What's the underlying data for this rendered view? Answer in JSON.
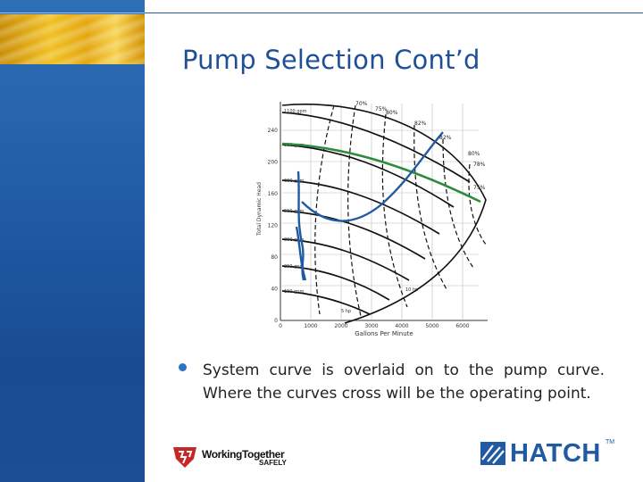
{
  "slide": {
    "title": "Pump Selection Cont’d"
  },
  "bullets": [
    {
      "text": "System curve is overlaid on to the pump curve. Where the curves cross will be the operating point."
    }
  ],
  "logos": {
    "working_together_line1": "WorkingTogether",
    "working_together_line2": "SAFELY",
    "hatch": "HATCH",
    "hatch_tm": "TM"
  },
  "chart_data": {
    "type": "line",
    "xlabel": "Gallons Per Minute",
    "ylabel": "Total Dynamic Head",
    "xlim": [
      0,
      6000
    ],
    "ylim": [
      0,
      280
    ],
    "x_ticks": [
      "0",
      "1000",
      "2000",
      "3000",
      "4000",
      "5000",
      "6000"
    ],
    "y_ticks": [
      "0",
      "40",
      "80",
      "120",
      "160",
      "200",
      "240"
    ],
    "efficiency_labels": [
      "70%",
      "75%",
      "80%",
      "82%",
      "82%",
      "80%",
      "78%",
      "75%"
    ],
    "grid": true,
    "colors": {
      "system_curve": "#1f5aa3",
      "highlight_curve": "#2e8b3d",
      "pump_curves": "#111111"
    }
  },
  "colors": {
    "title": "#1f4f99",
    "sidebar": "#1f5aa3",
    "bullet": "#2e74c0",
    "hatch": "#1f5aa3"
  }
}
